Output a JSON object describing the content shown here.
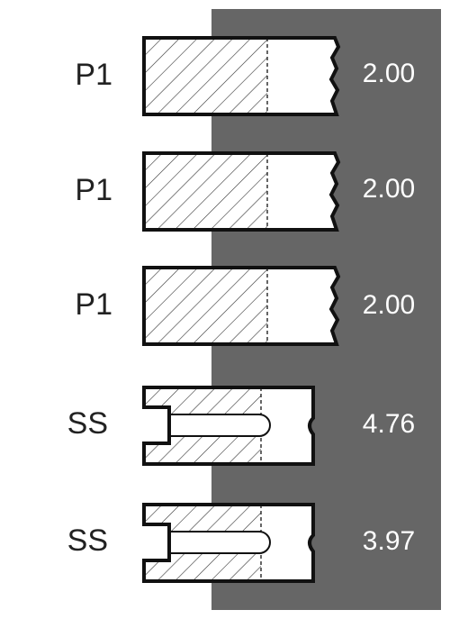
{
  "rows": [
    {
      "label": "P1",
      "value": "2.00"
    },
    {
      "label": "P1",
      "value": "2.00"
    },
    {
      "label": "P1",
      "value": "2.00"
    },
    {
      "label": "SS",
      "value": "4.76"
    },
    {
      "label": "SS",
      "value": "3.97"
    }
  ]
}
